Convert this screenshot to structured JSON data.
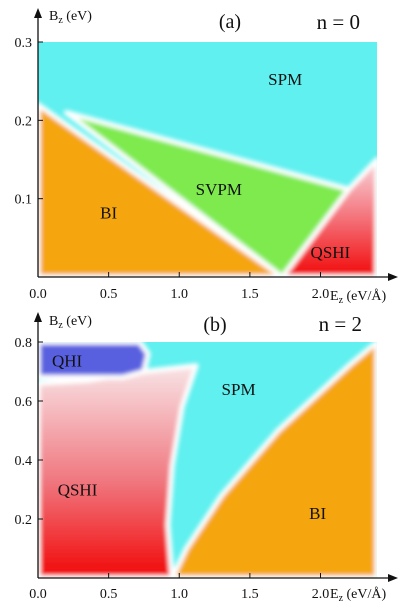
{
  "colors": {
    "SPM": "#5ff0ef",
    "SVPM": "#7eea4e",
    "BI": "#f5a50d",
    "QSHI": "#f51010",
    "QHI": "#5860e0",
    "boundary": "#ffffff",
    "axis": "#111111"
  },
  "chart_data": [
    {
      "type": "heatmap",
      "panel": "(a)",
      "title": "n = 0",
      "xlabel": "E",
      "xlabel_sub": "z",
      "xlabel_unit": " (eV/Å)",
      "ylabel": "B",
      "ylabel_sub": "z",
      "ylabel_unit": " (eV)",
      "xlim": [
        0,
        2.4
      ],
      "ylim": [
        0,
        0.3
      ],
      "xticks": [
        0.0,
        0.5,
        1.0,
        1.5,
        2.0
      ],
      "xtick_labels": [
        "0.0",
        "0.5",
        "1.0",
        "1.5",
        "2.0"
      ],
      "yticks": [
        0.1,
        0.2,
        0.3
      ],
      "ytick_labels": [
        "0.1",
        "0.2",
        "0.3"
      ],
      "background_region": "SPM",
      "regions": [
        {
          "name": "BI",
          "label": "BI",
          "label_at": [
            0.5,
            0.075
          ],
          "polygon": [
            [
              0.0,
              0.0
            ],
            [
              0.0,
              0.22
            ],
            [
              1.73,
              0.0
            ]
          ]
        },
        {
          "name": "SVPM",
          "label": "SVPM",
          "label_at": [
            1.28,
            0.105
          ],
          "polygon": [
            [
              0.2,
              0.21
            ],
            [
              2.2,
              0.112
            ],
            [
              1.73,
              0.0
            ]
          ]
        },
        {
          "name": "QSHI",
          "label": "QSHI",
          "label_at": [
            2.07,
            0.024
          ],
          "gradient": true,
          "polygon": [
            [
              1.73,
              0.0
            ],
            [
              2.4,
              0.0
            ],
            [
              2.4,
              0.15
            ],
            [
              2.2,
              0.112
            ]
          ]
        },
        {
          "name": "SPM",
          "label": "SPM",
          "label_at": [
            1.75,
            0.245
          ]
        }
      ]
    },
    {
      "type": "heatmap",
      "panel": "(b)",
      "title": "n = 2",
      "xlabel": "E",
      "xlabel_sub": "z",
      "xlabel_unit": " (eV/Å)",
      "ylabel": "B",
      "ylabel_sub": "z",
      "ylabel_unit": " (eV)",
      "xlim": [
        0,
        2.4
      ],
      "ylim": [
        0,
        0.8
      ],
      "xticks": [
        0.0,
        0.5,
        1.0,
        1.5,
        2.0
      ],
      "xtick_labels": [
        "0.0",
        "0.5",
        "1.0",
        "1.5",
        "2.0"
      ],
      "yticks": [
        0.2,
        0.4,
        0.6,
        0.8
      ],
      "ytick_labels": [
        "0.2",
        "0.4",
        "0.6",
        "0.8"
      ],
      "background_region": "SPM",
      "regions": [
        {
          "name": "BI",
          "label": "BI",
          "label_at": [
            1.98,
            0.2
          ],
          "polygon": [
            [
              0.95,
              0.0
            ],
            [
              2.4,
              0.0
            ],
            [
              2.4,
              0.8
            ],
            [
              2.2,
              0.72
            ],
            [
              1.7,
              0.5
            ],
            [
              1.3,
              0.28
            ],
            [
              1.05,
              0.1
            ]
          ]
        },
        {
          "name": "QSHI",
          "label": "QSHI",
          "label_at": [
            0.28,
            0.28
          ],
          "gradient": true,
          "polygon": [
            [
              0.0,
              0.0
            ],
            [
              0.95,
              0.0
            ],
            [
              0.92,
              0.18
            ],
            [
              0.95,
              0.38
            ],
            [
              1.02,
              0.58
            ],
            [
              1.12,
              0.72
            ],
            [
              0.75,
              0.7
            ],
            [
              0.35,
              0.67
            ],
            [
              0.0,
              0.66
            ]
          ]
        },
        {
          "name": "QHI",
          "label": "QHI",
          "label_at": [
            0.0,
            0.717
          ],
          "polygon": [
            [
              0.0,
              0.68
            ],
            [
              0.6,
              0.68
            ],
            [
              0.75,
              0.7
            ],
            [
              0.78,
              0.76
            ],
            [
              0.72,
              0.8
            ],
            [
              0.0,
              0.8
            ]
          ]
        },
        {
          "name": "SPM",
          "label": "SPM",
          "label_at": [
            1.42,
            0.62
          ]
        }
      ]
    }
  ]
}
